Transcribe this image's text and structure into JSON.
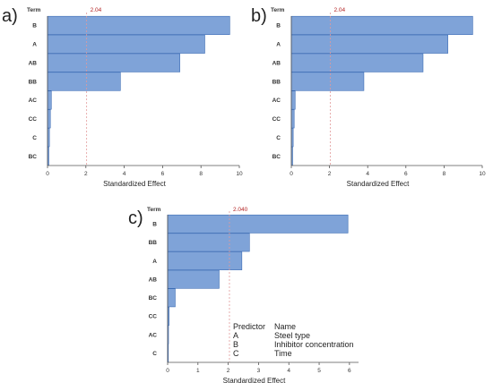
{
  "panels": [
    "a)",
    "b)",
    "c)"
  ],
  "chart_data": [
    {
      "type": "bar",
      "orientation": "horizontal",
      "label": "a)",
      "term_header": "Term",
      "categories": [
        "B",
        "A",
        "AB",
        "BB",
        "AC",
        "CC",
        "C",
        "BC"
      ],
      "values": [
        9.5,
        8.2,
        6.9,
        3.8,
        0.2,
        0.15,
        0.1,
        0.07
      ],
      "reference": 2.04,
      "reference_label": "2.04",
      "xlabel": "Standardized Effect",
      "xlim": [
        0,
        10
      ],
      "xticks": [
        0,
        2,
        4,
        6,
        8,
        10
      ],
      "bar_color": "#7fa3d8"
    },
    {
      "type": "bar",
      "orientation": "horizontal",
      "label": "b)",
      "term_header": "Term",
      "categories": [
        "B",
        "A",
        "AB",
        "BB",
        "AC",
        "CC",
        "C",
        "BC"
      ],
      "values": [
        9.5,
        8.2,
        6.9,
        3.8,
        0.2,
        0.15,
        0.1,
        0.07
      ],
      "reference": 2.04,
      "reference_label": "2.04",
      "xlabel": "Standardized Effect",
      "xlim": [
        0,
        10
      ],
      "xticks": [
        0,
        2,
        4,
        6,
        8,
        10
      ],
      "bar_color": "#7fa3d8"
    },
    {
      "type": "bar",
      "orientation": "horizontal",
      "label": "c)",
      "term_header": "Term",
      "categories": [
        "B",
        "BB",
        "A",
        "AB",
        "BC",
        "CC",
        "AC",
        "C"
      ],
      "values": [
        5.95,
        2.7,
        2.45,
        1.7,
        0.25,
        0.05,
        0.03,
        0.02
      ],
      "reference": 2.04,
      "reference_label": "2.040",
      "xlabel": "Standardized Effect",
      "xlim": [
        0,
        6.3
      ],
      "xticks": [
        0,
        1,
        2,
        3,
        4,
        5,
        6
      ],
      "bar_color": "#7fa3d8",
      "legend": {
        "header": [
          "Predictor",
          "Name"
        ],
        "rows": [
          [
            "A",
            "Steel type"
          ],
          [
            "B",
            "Inhibitor concentration"
          ],
          [
            "C",
            "Time"
          ]
        ]
      }
    }
  ]
}
